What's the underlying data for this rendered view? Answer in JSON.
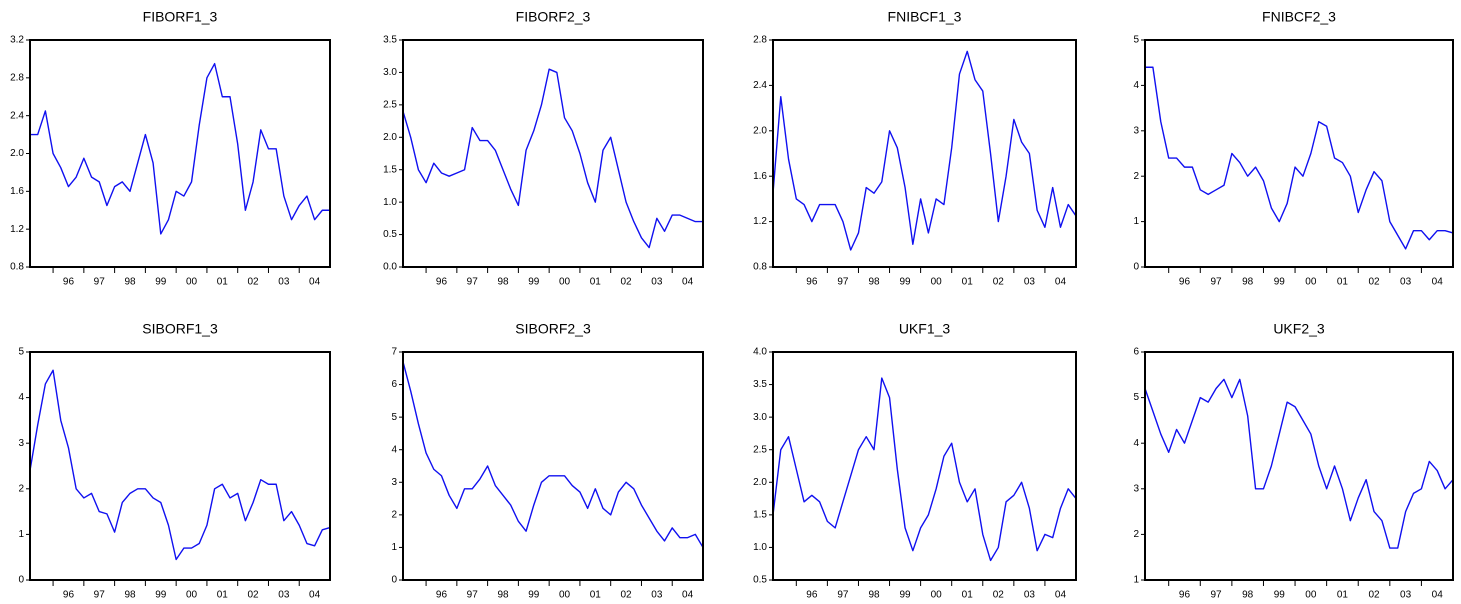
{
  "chart_data": [
    {
      "type": "line",
      "title": "FIBORF1_3",
      "color": "#1010f0",
      "x": [
        1995.25,
        1995.5,
        1995.75,
        1996,
        1996.25,
        1996.5,
        1996.75,
        1997,
        1997.25,
        1997.5,
        1997.75,
        1998,
        1998.25,
        1998.5,
        1998.75,
        1999,
        1999.25,
        1999.5,
        1999.75,
        2000,
        2000.25,
        2000.5,
        2000.75,
        2001,
        2001.25,
        2001.5,
        2001.75,
        2002,
        2002.25,
        2002.5,
        2002.75,
        2003,
        2003.25,
        2003.5,
        2003.75,
        2004,
        2004.25,
        2004.5,
        2004.75,
        2005
      ],
      "values": [
        2.2,
        2.2,
        2.45,
        2.0,
        1.85,
        1.65,
        1.75,
        1.95,
        1.75,
        1.7,
        1.45,
        1.65,
        1.7,
        1.6,
        1.9,
        2.2,
        1.9,
        1.15,
        1.3,
        1.6,
        1.55,
        1.7,
        2.3,
        2.8,
        2.95,
        2.6,
        2.6,
        2.1,
        1.4,
        1.7,
        2.25,
        2.05,
        2.05,
        1.55,
        1.3,
        1.45,
        1.55,
        1.3,
        1.4,
        1.4
      ],
      "xlim": [
        1995.25,
        2005.0
      ],
      "ylim": [
        0.8,
        3.2
      ],
      "yticks": [
        0.8,
        1.2,
        1.6,
        {
          "value": 2,
          "label": "2.0"
        },
        2.4,
        2.8,
        3.2
      ],
      "xticks": [
        {
          "value": 1996,
          "label": "96"
        },
        {
          "value": 1997,
          "label": "97"
        },
        {
          "value": 1998,
          "label": "98"
        },
        {
          "value": 1999,
          "label": "99"
        },
        {
          "value": 2000,
          "label": "00"
        },
        {
          "value": 2001,
          "label": "01"
        },
        {
          "value": 2002,
          "label": "02"
        },
        {
          "value": 2003,
          "label": "03"
        },
        {
          "value": 2004,
          "label": "04"
        }
      ]
    },
    {
      "type": "line",
      "title": "FIBORF2_3",
      "color": "#1010f0",
      "x": [
        1995.25,
        1995.5,
        1995.75,
        1996,
        1996.25,
        1996.5,
        1996.75,
        1997,
        1997.25,
        1997.5,
        1997.75,
        1998,
        1998.25,
        1998.5,
        1998.75,
        1999,
        1999.25,
        1999.5,
        1999.75,
        2000,
        2000.25,
        2000.5,
        2000.75,
        2001,
        2001.25,
        2001.5,
        2001.75,
        2002,
        2002.25,
        2002.5,
        2002.75,
        2003,
        2003.25,
        2003.5,
        2003.75,
        2004,
        2004.25,
        2004.5,
        2004.75,
        2005
      ],
      "values": [
        2.4,
        2.0,
        1.5,
        1.3,
        1.6,
        1.45,
        1.4,
        1.45,
        1.5,
        2.15,
        1.95,
        1.95,
        1.8,
        1.5,
        1.2,
        0.95,
        1.8,
        2.1,
        2.5,
        3.05,
        3.0,
        2.3,
        2.1,
        1.75,
        1.3,
        1.0,
        1.8,
        2.0,
        1.5,
        1.0,
        0.7,
        0.45,
        0.3,
        0.75,
        0.55,
        0.8,
        0.8,
        0.75,
        0.7,
        0.7
      ],
      "xlim": [
        1995.25,
        2005.0
      ],
      "ylim": [
        0,
        3.5
      ],
      "yticks": [
        {
          "value": 0,
          "label": "0.0"
        },
        0.5,
        {
          "value": 1,
          "label": "1.0"
        },
        1.5,
        {
          "value": 2,
          "label": "2.0"
        },
        2.5,
        {
          "value": 3,
          "label": "3.0"
        },
        3.5
      ],
      "xticks": [
        {
          "value": 1996,
          "label": "96"
        },
        {
          "value": 1997,
          "label": "97"
        },
        {
          "value": 1998,
          "label": "98"
        },
        {
          "value": 1999,
          "label": "99"
        },
        {
          "value": 2000,
          "label": "00"
        },
        {
          "value": 2001,
          "label": "01"
        },
        {
          "value": 2002,
          "label": "02"
        },
        {
          "value": 2003,
          "label": "03"
        },
        {
          "value": 2004,
          "label": "04"
        }
      ]
    },
    {
      "type": "line",
      "title": "FNIBCF1_3",
      "color": "#1010f0",
      "x": [
        1995.25,
        1995.5,
        1995.75,
        1996,
        1996.25,
        1996.5,
        1996.75,
        1997,
        1997.25,
        1997.5,
        1997.75,
        1998,
        1998.25,
        1998.5,
        1998.75,
        1999,
        1999.25,
        1999.5,
        1999.75,
        2000,
        2000.25,
        2000.5,
        2000.75,
        2001,
        2001.25,
        2001.5,
        2001.75,
        2002,
        2002.25,
        2002.5,
        2002.75,
        2003,
        2003.25,
        2003.5,
        2003.75,
        2004,
        2004.25,
        2004.5,
        2004.75,
        2005
      ],
      "values": [
        1.45,
        2.3,
        1.75,
        1.4,
        1.35,
        1.2,
        1.35,
        1.35,
        1.35,
        1.2,
        0.95,
        1.1,
        1.5,
        1.45,
        1.55,
        2.0,
        1.85,
        1.5,
        1.0,
        1.4,
        1.1,
        1.4,
        1.35,
        1.85,
        2.5,
        2.7,
        2.45,
        2.35,
        1.8,
        1.2,
        1.6,
        2.1,
        1.9,
        1.8,
        1.3,
        1.15,
        1.5,
        1.15,
        1.35,
        1.25
      ],
      "xlim": [
        1995.25,
        2005.0
      ],
      "ylim": [
        0.8,
        2.8
      ],
      "yticks": [
        0.8,
        1.2,
        1.6,
        {
          "value": 2,
          "label": "2.0"
        },
        2.4,
        2.8
      ],
      "xticks": [
        {
          "value": 1996,
          "label": "96"
        },
        {
          "value": 1997,
          "label": "97"
        },
        {
          "value": 1998,
          "label": "98"
        },
        {
          "value": 1999,
          "label": "99"
        },
        {
          "value": 2000,
          "label": "00"
        },
        {
          "value": 2001,
          "label": "01"
        },
        {
          "value": 2002,
          "label": "02"
        },
        {
          "value": 2003,
          "label": "03"
        },
        {
          "value": 2004,
          "label": "04"
        }
      ]
    },
    {
      "type": "line",
      "title": "FNIBCF2_3",
      "color": "#1010f0",
      "x": [
        1995.25,
        1995.5,
        1995.75,
        1996,
        1996.25,
        1996.5,
        1996.75,
        1997,
        1997.25,
        1997.5,
        1997.75,
        1998,
        1998.25,
        1998.5,
        1998.75,
        1999,
        1999.25,
        1999.5,
        1999.75,
        2000,
        2000.25,
        2000.5,
        2000.75,
        2001,
        2001.25,
        2001.5,
        2001.75,
        2002,
        2002.25,
        2002.5,
        2002.75,
        2003,
        2003.25,
        2003.5,
        2003.75,
        2004,
        2004.25,
        2004.5,
        2004.75,
        2005
      ],
      "values": [
        4.4,
        4.4,
        3.2,
        2.4,
        2.4,
        2.2,
        2.2,
        1.7,
        1.6,
        1.7,
        1.8,
        2.5,
        2.3,
        2.0,
        2.2,
        1.9,
        1.3,
        1.0,
        1.4,
        2.2,
        2.0,
        2.5,
        3.2,
        3.1,
        2.4,
        2.3,
        2.0,
        1.2,
        1.7,
        2.1,
        1.9,
        1.0,
        0.7,
        0.4,
        0.8,
        0.8,
        0.6,
        0.8,
        0.8,
        0.75
      ],
      "xlim": [
        1995.25,
        2005.0
      ],
      "ylim": [
        0,
        5
      ],
      "yticks": [
        0,
        1,
        2,
        3,
        4,
        5
      ],
      "xticks": [
        {
          "value": 1996,
          "label": "96"
        },
        {
          "value": 1997,
          "label": "97"
        },
        {
          "value": 1998,
          "label": "98"
        },
        {
          "value": 1999,
          "label": "99"
        },
        {
          "value": 2000,
          "label": "00"
        },
        {
          "value": 2001,
          "label": "01"
        },
        {
          "value": 2002,
          "label": "02"
        },
        {
          "value": 2003,
          "label": "03"
        },
        {
          "value": 2004,
          "label": "04"
        }
      ]
    },
    {
      "type": "line",
      "title": "SIBORF1_3",
      "color": "#1010f0",
      "x": [
        1995.25,
        1995.5,
        1995.75,
        1996,
        1996.25,
        1996.5,
        1996.75,
        1997,
        1997.25,
        1997.5,
        1997.75,
        1998,
        1998.25,
        1998.5,
        1998.75,
        1999,
        1999.25,
        1999.5,
        1999.75,
        2000,
        2000.25,
        2000.5,
        2000.75,
        2001,
        2001.25,
        2001.5,
        2001.75,
        2002,
        2002.25,
        2002.5,
        2002.75,
        2003,
        2003.25,
        2003.5,
        2003.75,
        2004,
        2004.25,
        2004.5,
        2004.75,
        2005
      ],
      "values": [
        2.4,
        3.4,
        4.3,
        4.6,
        3.5,
        2.9,
        2.0,
        1.8,
        1.9,
        1.5,
        1.45,
        1.05,
        1.7,
        1.9,
        2.0,
        2.0,
        1.8,
        1.7,
        1.2,
        0.45,
        0.7,
        0.7,
        0.8,
        1.2,
        2.0,
        2.1,
        1.8,
        1.9,
        1.3,
        1.7,
        2.2,
        2.1,
        2.1,
        1.3,
        1.5,
        1.2,
        0.8,
        0.75,
        1.1,
        1.15
      ],
      "xlim": [
        1995.25,
        2005.0
      ],
      "ylim": [
        0,
        5
      ],
      "yticks": [
        0,
        1,
        2,
        3,
        4,
        5
      ],
      "xticks": [
        {
          "value": 1996,
          "label": "96"
        },
        {
          "value": 1997,
          "label": "97"
        },
        {
          "value": 1998,
          "label": "98"
        },
        {
          "value": 1999,
          "label": "99"
        },
        {
          "value": 2000,
          "label": "00"
        },
        {
          "value": 2001,
          "label": "01"
        },
        {
          "value": 2002,
          "label": "02"
        },
        {
          "value": 2003,
          "label": "03"
        },
        {
          "value": 2004,
          "label": "04"
        }
      ]
    },
    {
      "type": "line",
      "title": "SIBORF2_3",
      "color": "#1010f0",
      "x": [
        1995.25,
        1995.5,
        1995.75,
        1996,
        1996.25,
        1996.5,
        1996.75,
        1997,
        1997.25,
        1997.5,
        1997.75,
        1998,
        1998.25,
        1998.5,
        1998.75,
        1999,
        1999.25,
        1999.5,
        1999.75,
        2000,
        2000.25,
        2000.5,
        2000.75,
        2001,
        2001.25,
        2001.5,
        2001.75,
        2002,
        2002.25,
        2002.5,
        2002.75,
        2003,
        2003.25,
        2003.5,
        2003.75,
        2004,
        2004.25,
        2004.5,
        2004.75,
        2005
      ],
      "values": [
        6.7,
        5.8,
        4.8,
        3.9,
        3.4,
        3.2,
        2.6,
        2.2,
        2.8,
        2.8,
        3.1,
        3.5,
        2.9,
        2.6,
        2.3,
        1.8,
        1.5,
        2.3,
        3.0,
        3.2,
        3.2,
        3.2,
        2.9,
        2.7,
        2.2,
        2.8,
        2.2,
        2.0,
        2.7,
        3.0,
        2.8,
        2.3,
        1.9,
        1.5,
        1.2,
        1.6,
        1.3,
        1.3,
        1.4,
        1.0
      ],
      "xlim": [
        1995.25,
        2005.0
      ],
      "ylim": [
        0,
        7
      ],
      "yticks": [
        0,
        1,
        2,
        3,
        4,
        5,
        6,
        7
      ],
      "xticks": [
        {
          "value": 1996,
          "label": "96"
        },
        {
          "value": 1997,
          "label": "97"
        },
        {
          "value": 1998,
          "label": "98"
        },
        {
          "value": 1999,
          "label": "99"
        },
        {
          "value": 2000,
          "label": "00"
        },
        {
          "value": 2001,
          "label": "01"
        },
        {
          "value": 2002,
          "label": "02"
        },
        {
          "value": 2003,
          "label": "03"
        },
        {
          "value": 2004,
          "label": "04"
        }
      ]
    },
    {
      "type": "line",
      "title": "UKF1_3",
      "color": "#1010f0",
      "x": [
        1995.25,
        1995.5,
        1995.75,
        1996,
        1996.25,
        1996.5,
        1996.75,
        1997,
        1997.25,
        1997.5,
        1997.75,
        1998,
        1998.25,
        1998.5,
        1998.75,
        1999,
        1999.25,
        1999.5,
        1999.75,
        2000,
        2000.25,
        2000.5,
        2000.75,
        2001,
        2001.25,
        2001.5,
        2001.75,
        2002,
        2002.25,
        2002.5,
        2002.75,
        2003,
        2003.25,
        2003.5,
        2003.75,
        2004,
        2004.25,
        2004.5,
        2004.75,
        2005
      ],
      "values": [
        1.5,
        2.5,
        2.7,
        2.2,
        1.7,
        1.8,
        1.7,
        1.4,
        1.3,
        1.7,
        2.1,
        2.5,
        2.7,
        2.5,
        3.6,
        3.3,
        2.2,
        1.3,
        0.95,
        1.3,
        1.5,
        1.9,
        2.4,
        2.6,
        2.0,
        1.7,
        1.9,
        1.2,
        0.8,
        1.0,
        1.7,
        1.8,
        2.0,
        1.6,
        0.95,
        1.2,
        1.15,
        1.6,
        1.9,
        1.75
      ],
      "xlim": [
        1995.25,
        2005.0
      ],
      "ylim": [
        0.5,
        4.0
      ],
      "yticks": [
        0.5,
        {
          "value": 1,
          "label": "1.0"
        },
        1.5,
        {
          "value": 2,
          "label": "2.0"
        },
        2.5,
        {
          "value": 3,
          "label": "3.0"
        },
        3.5,
        {
          "value": 4,
          "label": "4.0"
        }
      ],
      "xticks": [
        {
          "value": 1996,
          "label": "96"
        },
        {
          "value": 1997,
          "label": "97"
        },
        {
          "value": 1998,
          "label": "98"
        },
        {
          "value": 1999,
          "label": "99"
        },
        {
          "value": 2000,
          "label": "00"
        },
        {
          "value": 2001,
          "label": "01"
        },
        {
          "value": 2002,
          "label": "02"
        },
        {
          "value": 2003,
          "label": "03"
        },
        {
          "value": 2004,
          "label": "04"
        }
      ]
    },
    {
      "type": "line",
      "title": "UKF2_3",
      "color": "#1010f0",
      "x": [
        1995.25,
        1995.5,
        1995.75,
        1996,
        1996.25,
        1996.5,
        1996.75,
        1997,
        1997.25,
        1997.5,
        1997.75,
        1998,
        1998.25,
        1998.5,
        1998.75,
        1999,
        1999.25,
        1999.5,
        1999.75,
        2000,
        2000.25,
        2000.5,
        2000.75,
        2001,
        2001.25,
        2001.5,
        2001.75,
        2002,
        2002.25,
        2002.5,
        2002.75,
        2003,
        2003.25,
        2003.5,
        2003.75,
        2004,
        2004.25,
        2004.5,
        2004.75,
        2005
      ],
      "values": [
        5.2,
        4.7,
        4.2,
        3.8,
        4.3,
        4.0,
        4.5,
        5.0,
        4.9,
        5.2,
        5.4,
        5.0,
        5.4,
        4.6,
        3.0,
        3.0,
        3.5,
        4.2,
        4.9,
        4.8,
        4.5,
        4.2,
        3.5,
        3.0,
        3.5,
        3.0,
        2.3,
        2.8,
        3.2,
        2.5,
        2.3,
        1.7,
        1.7,
        2.5,
        2.9,
        3.0,
        3.6,
        3.4,
        3.0,
        3.2
      ],
      "xlim": [
        1995.25,
        2005.0
      ],
      "ylim": [
        1,
        6
      ],
      "yticks": [
        1,
        2,
        3,
        4,
        5,
        6
      ],
      "xticks": [
        {
          "value": 1996,
          "label": "96"
        },
        {
          "value": 1997,
          "label": "97"
        },
        {
          "value": 1998,
          "label": "98"
        },
        {
          "value": 1999,
          "label": "99"
        },
        {
          "value": 2000,
          "label": "00"
        },
        {
          "value": 2001,
          "label": "01"
        },
        {
          "value": 2002,
          "label": "02"
        },
        {
          "value": 2003,
          "label": "03"
        },
        {
          "value": 2004,
          "label": "04"
        }
      ]
    }
  ]
}
